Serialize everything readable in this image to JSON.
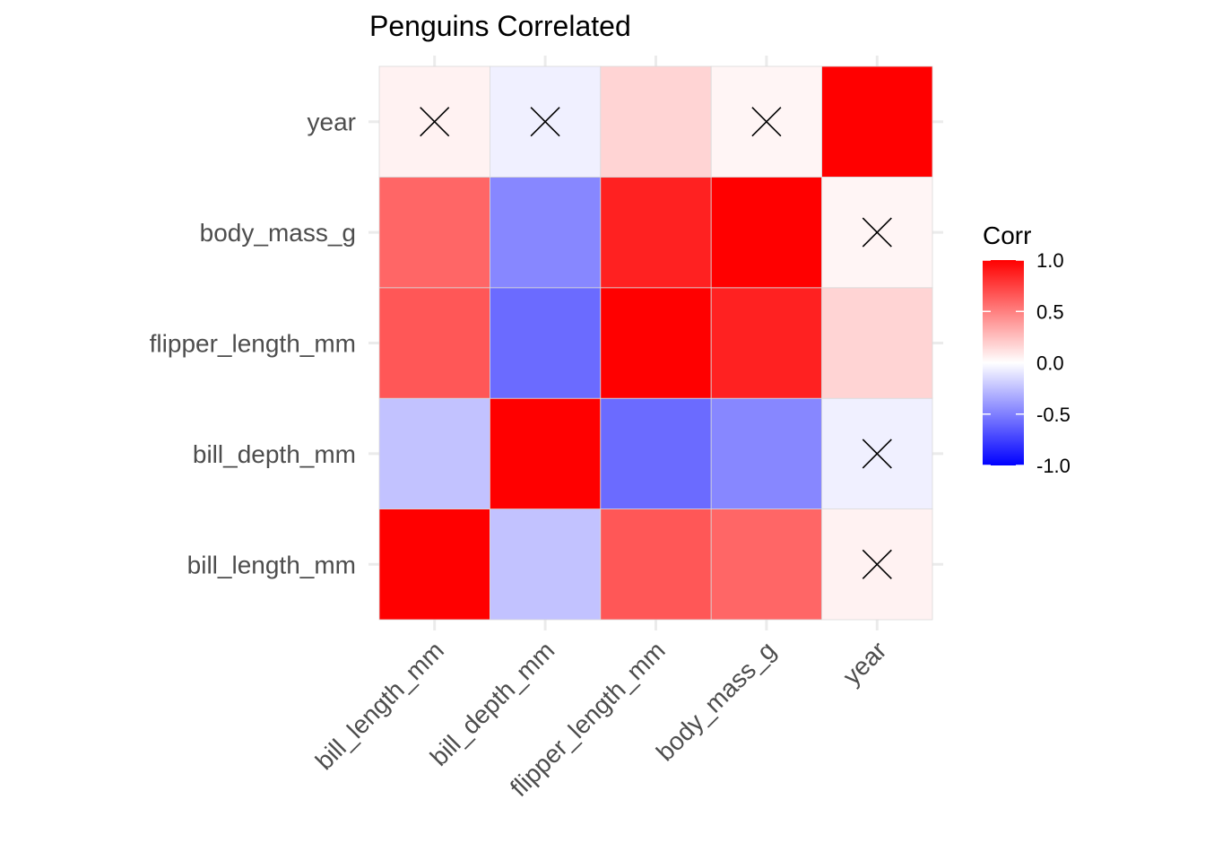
{
  "chart_data": {
    "type": "heatmap",
    "title": "Penguins Correlated",
    "xlabel": "",
    "ylabel": "",
    "variables": [
      "bill_length_mm",
      "bill_depth_mm",
      "flipper_length_mm",
      "body_mass_g",
      "year"
    ],
    "x_categories": [
      "bill_length_mm",
      "bill_depth_mm",
      "flipper_length_mm",
      "body_mass_g",
      "year"
    ],
    "y_categories": [
      "bill_length_mm",
      "bill_depth_mm",
      "flipper_length_mm",
      "body_mass_g",
      "year"
    ],
    "matrix": [
      [
        1.0,
        -0.24,
        0.66,
        0.6,
        0.05
      ],
      [
        -0.24,
        1.0,
        -0.58,
        -0.47,
        -0.06
      ],
      [
        0.66,
        -0.58,
        1.0,
        0.87,
        0.17
      ],
      [
        0.6,
        -0.47,
        0.87,
        1.0,
        0.04
      ],
      [
        0.05,
        -0.06,
        0.17,
        0.04,
        1.0
      ]
    ],
    "insignificant": [
      [
        false,
        false,
        false,
        false,
        true
      ],
      [
        false,
        false,
        false,
        false,
        true
      ],
      [
        false,
        false,
        false,
        false,
        false
      ],
      [
        false,
        false,
        false,
        false,
        true
      ],
      [
        true,
        true,
        false,
        true,
        false
      ]
    ],
    "legend": {
      "title": "Corr",
      "ticks": [
        "1.0",
        "0.5",
        "0.0",
        "-0.5",
        "-1.0"
      ],
      "tick_values": [
        1.0,
        0.5,
        0.0,
        -0.5,
        -1.0
      ],
      "range": [
        -1.0,
        1.0
      ],
      "colors": {
        "low": "#0000ff",
        "mid": "#ffffff",
        "high": "#ff0000"
      },
      "placement": "right"
    },
    "grid": true
  }
}
